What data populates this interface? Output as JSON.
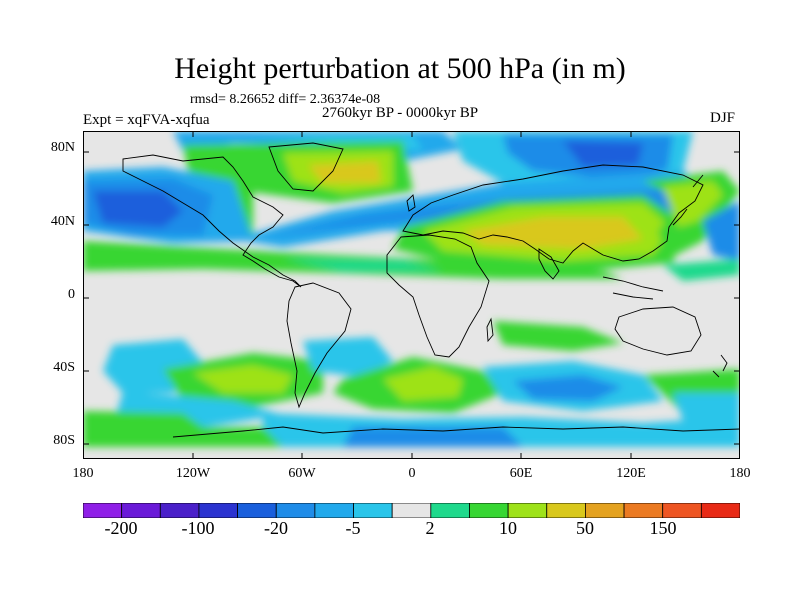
{
  "title": "Height perturbation at 500 hPa (in m)",
  "stats_line": "rmsd= 8.26652 diff= 2.36374e-08",
  "period": "2760kyr BP - 0000kyr BP",
  "experiment": "Expt = xqFVA-xqfua",
  "season": "DJF",
  "lat_ticks": [
    "80N",
    "40N",
    "0",
    "40S",
    "80S"
  ],
  "lon_ticks": [
    "180",
    "120W",
    "60W",
    "0",
    "60E",
    "120E",
    "180"
  ],
  "colorbar": {
    "colors": [
      "#8f1fe7",
      "#6a1ad8",
      "#4a20c9",
      "#2b33d0",
      "#1a5fdc",
      "#1f8ce8",
      "#21a9ec",
      "#2ac5ea",
      "#e6e6e6",
      "#1fd98c",
      "#37d633",
      "#9ee219",
      "#d9c81c",
      "#e4a220",
      "#eb7a22",
      "#ee5522",
      "#e82a16"
    ],
    "labels": [
      "-200",
      "-100",
      "-20",
      "-5",
      "2",
      "10",
      "50",
      "150"
    ]
  }
}
